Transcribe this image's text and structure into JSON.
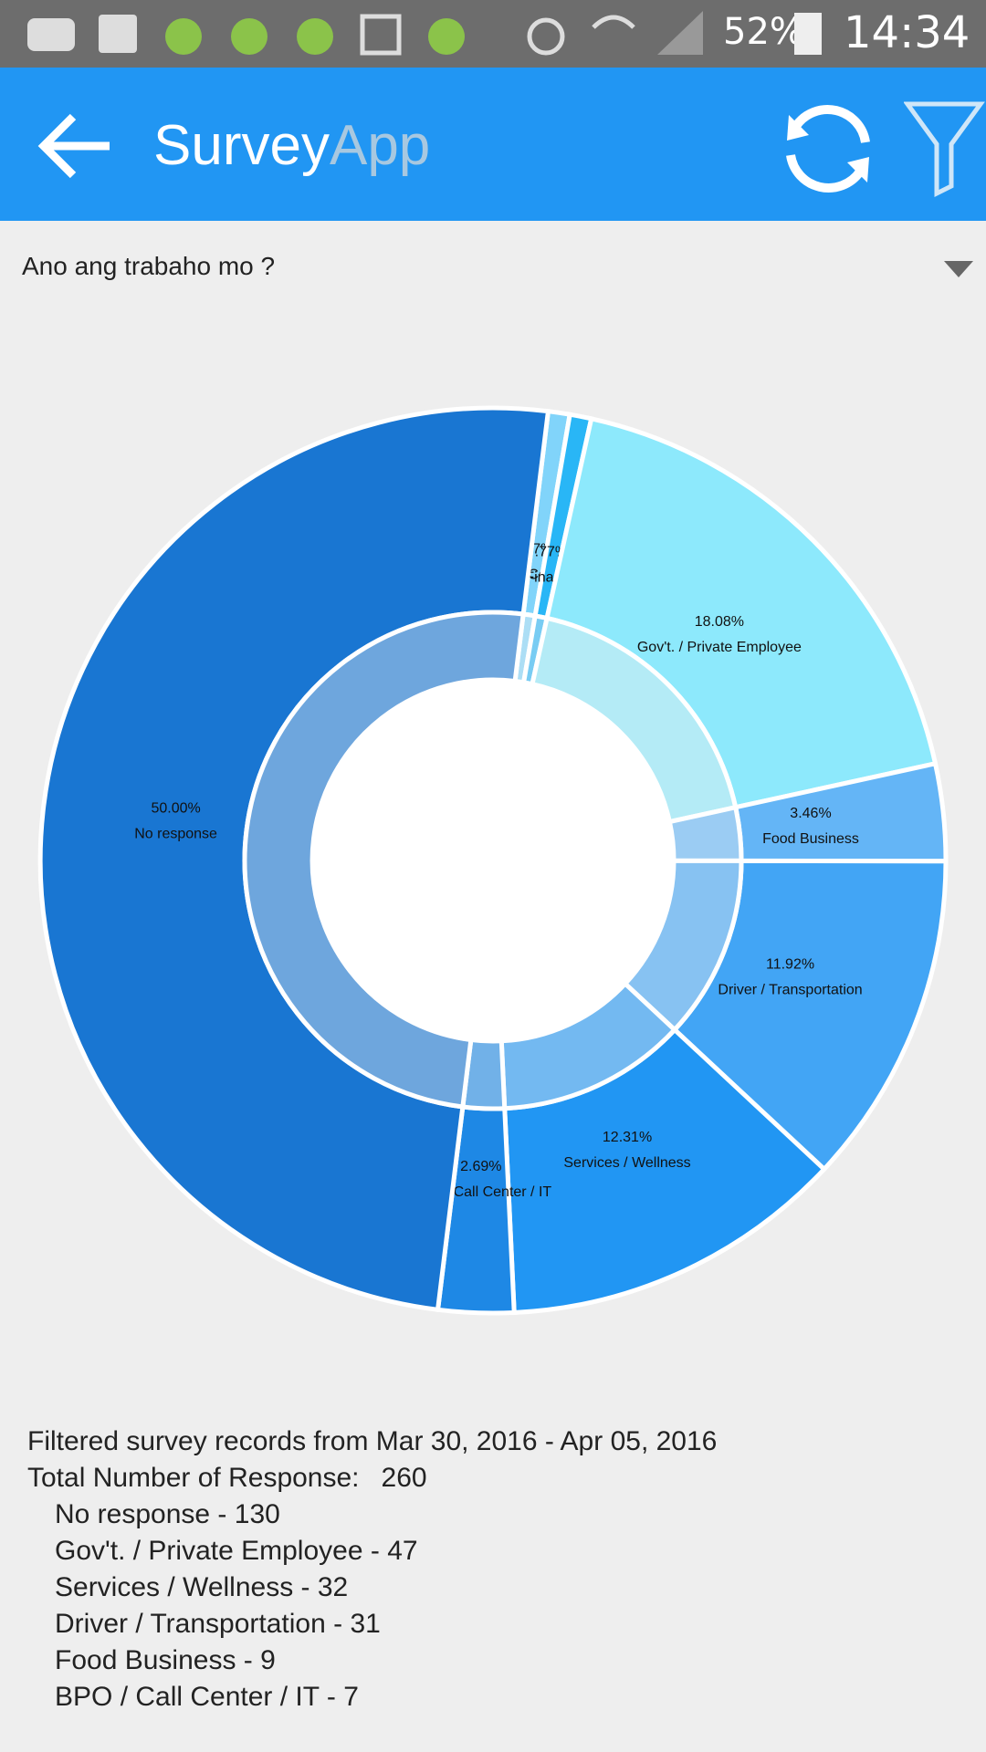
{
  "status_bar": {
    "battery": "52%",
    "time": "14:34"
  },
  "app_bar": {
    "title_main": "Survey",
    "title_accent": "App"
  },
  "question": "Ano ang trabaho mo ?",
  "chart_data": {
    "type": "pie",
    "categories": [
      "Retail / Consumer",
      "Finance",
      "Gov't. / Private Employee",
      "Food Business",
      "Driver / Transportation",
      "Services / Wellness",
      "BPO / Call Center / IT",
      "No response"
    ],
    "values": [
      0.77,
      0.77,
      18.08,
      3.46,
      11.92,
      12.31,
      2.69,
      50.0
    ],
    "value_labels": [
      ".77%",
      ".77%",
      "18.08%",
      "3.46%",
      "11.92%",
      "12.31%",
      "2.69%",
      "50.00%"
    ],
    "colors": [
      "#81d4fa",
      "#29b6f6",
      "#8de9fc",
      "#64b5f6",
      "#42a5f5",
      "#2196f3",
      "#1e88e5",
      "#1976d2"
    ]
  },
  "summary": {
    "filter": "Filtered survey records from Mar 30, 2016 - Apr 05, 2016",
    "total_label": "Total Number of Response:",
    "total": 260,
    "items": [
      "No response - 130",
      "Gov't. / Private Employee - 47",
      "Services / Wellness - 32",
      "Driver / Transportation - 31",
      "Food Business - 9",
      "BPO / Call Center / IT - 7"
    ]
  }
}
